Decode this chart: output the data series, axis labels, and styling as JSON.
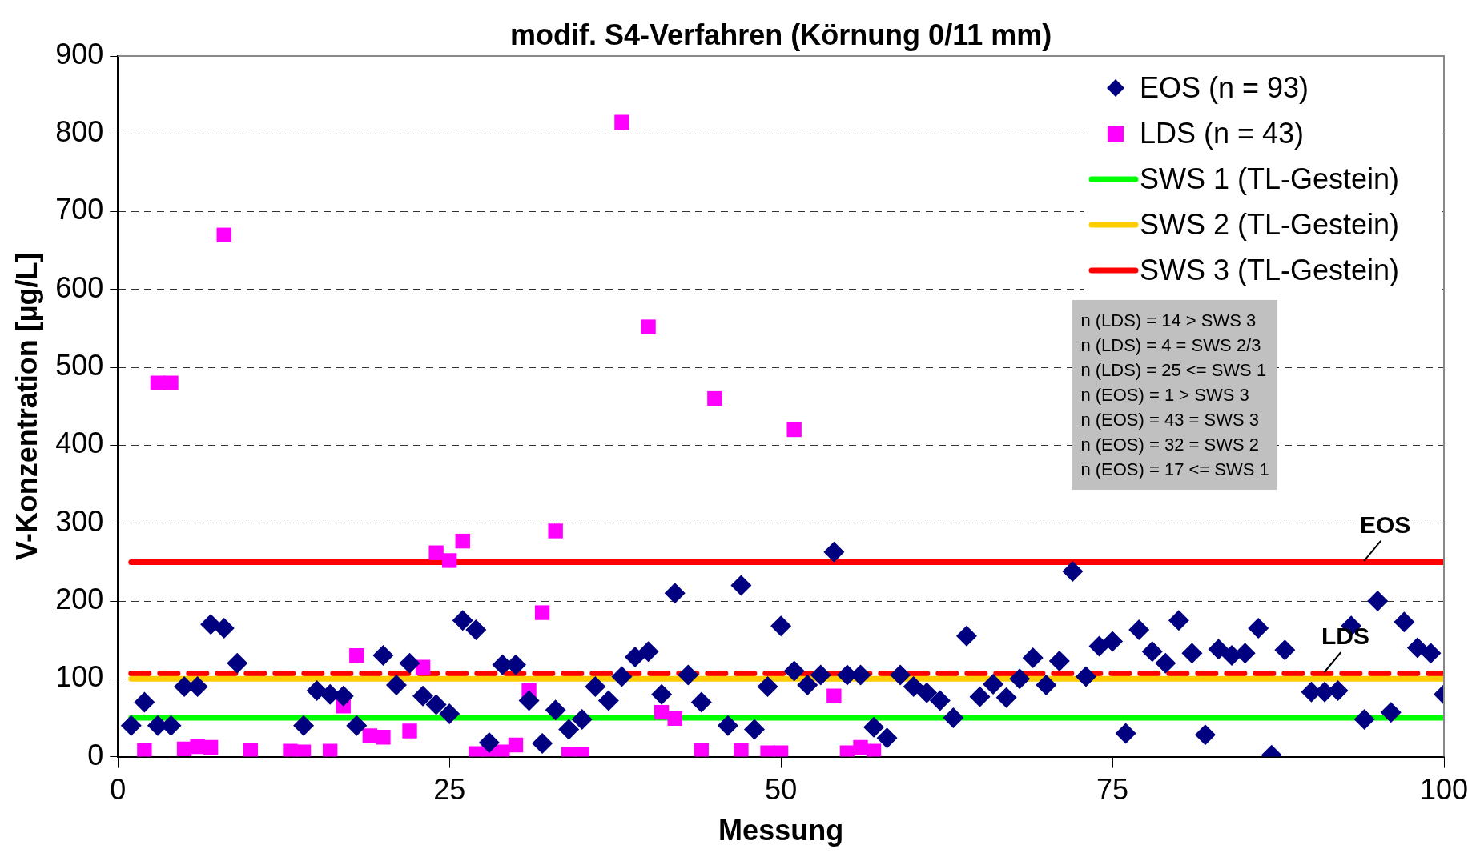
{
  "chart_data": {
    "type": "scatter",
    "title": "modif. S4-Verfahren (Körnung 0/11 mm)",
    "xlabel": "Messung",
    "ylabel": "V-Konzentration [µg/L]",
    "xlim": [
      0,
      100
    ],
    "xticks": [
      0,
      25,
      50,
      75,
      100
    ],
    "ylim": [
      0,
      900
    ],
    "yticks": [
      0,
      100,
      200,
      300,
      400,
      500,
      600,
      700,
      800,
      900
    ],
    "grid": "y",
    "legend": "top right",
    "series": [
      {
        "name": "EOS (n = 93)",
        "type": "scatter",
        "marker": "diamond",
        "color": "#000080",
        "x": [
          1,
          2,
          3,
          4,
          5,
          6,
          7,
          8,
          9,
          14,
          15,
          16,
          17,
          18,
          20,
          21,
          22,
          23,
          24,
          25,
          26,
          27,
          28,
          29,
          30,
          31,
          32,
          33,
          34,
          35,
          36,
          37,
          38,
          39,
          40,
          41,
          42,
          43,
          44,
          46,
          47,
          48,
          49,
          50,
          51,
          52,
          53,
          54,
          55,
          56,
          57,
          58,
          59,
          60,
          61,
          62,
          63,
          64,
          65,
          66,
          67,
          68,
          69,
          70,
          71,
          72,
          73,
          74,
          75,
          76,
          77,
          78,
          79,
          80,
          81,
          82,
          83,
          84,
          85,
          86,
          87,
          88,
          90,
          91,
          92,
          93,
          94,
          95,
          96,
          97,
          98,
          99,
          100
        ],
        "values": [
          40,
          70,
          40,
          40,
          90,
          90,
          170,
          165,
          120,
          40,
          85,
          80,
          78,
          40,
          130,
          92,
          120,
          78,
          67,
          55,
          175,
          163,
          18,
          118,
          118,
          72,
          17,
          60,
          35,
          48,
          90,
          72,
          103,
          128,
          135,
          80,
          210,
          105,
          70,
          40,
          220,
          35,
          90,
          168,
          110,
          92,
          105,
          263,
          105,
          105,
          38,
          24,
          105,
          90,
          82,
          72,
          50,
          155,
          77,
          93,
          76,
          100,
          127,
          92,
          123,
          238,
          103,
          142,
          148,
          30,
          163,
          135,
          120,
          175,
          133,
          28,
          138,
          130,
          133,
          165,
          2,
          137,
          83,
          83,
          85,
          168,
          48,
          200,
          57,
          173,
          140,
          133,
          80
        ]
      },
      {
        "name": "LDS (n = 43)",
        "type": "scatter",
        "marker": "square",
        "color": "#ff00ff",
        "x": [
          2,
          3,
          4,
          5,
          6,
          7,
          8,
          10,
          13,
          14,
          16,
          17,
          18,
          19,
          20,
          22,
          23,
          24,
          25,
          26,
          27,
          28,
          29,
          30,
          31,
          32,
          33,
          34,
          35,
          38,
          40,
          41,
          42,
          44,
          45,
          47,
          49,
          50,
          51,
          54,
          55,
          56,
          57
        ],
        "values": [
          8,
          480,
          480,
          10,
          13,
          12,
          670,
          8,
          7,
          6,
          7,
          65,
          130,
          27,
          25,
          33,
          115,
          262,
          252,
          277,
          4,
          5,
          6,
          15,
          85,
          185,
          290,
          3,
          3,
          815,
          552,
          57,
          49,
          8,
          460,
          8,
          5,
          5,
          420,
          78,
          5,
          12,
          7
        ]
      },
      {
        "name": "SWS 1 (TL-Gestein)",
        "type": "line",
        "marker": "none",
        "color": "#00ff00",
        "x": [
          1,
          100
        ],
        "values": [
          50,
          50
        ]
      },
      {
        "name": "SWS 2 (TL-Gestein)",
        "type": "line",
        "marker": "none",
        "color": "#ffcc00",
        "x": [
          1,
          100
        ],
        "values": [
          100,
          100
        ]
      },
      {
        "name": "SWS 3 (TL-Gestein)",
        "type": "line",
        "marker": "none",
        "color": "#ff0000",
        "x": [
          1,
          100
        ],
        "values": [
          250,
          250
        ]
      },
      {
        "type": "line",
        "marker": "none",
        "line_style": "dashed",
        "color": "#ff0000",
        "x": [
          1,
          100
        ],
        "values": [
          107,
          107
        ]
      }
    ],
    "annotations": [
      "n (LDS) = 14 > SWS 3",
      "n (LDS) = 4 = SWS 2/3",
      "n (LDS) = 25 <= SWS 1",
      "n (EOS) = 1 > SWS 3",
      "n (EOS) = 43 = SWS 3",
      "n (EOS) = 32 = SWS 2",
      "n (EOS) = 17 <= SWS 1",
      {
        "text": "EOS",
        "x": 94,
        "y": 250
      },
      {
        "text": "LDS",
        "x": 91,
        "y": 107
      }
    ]
  }
}
